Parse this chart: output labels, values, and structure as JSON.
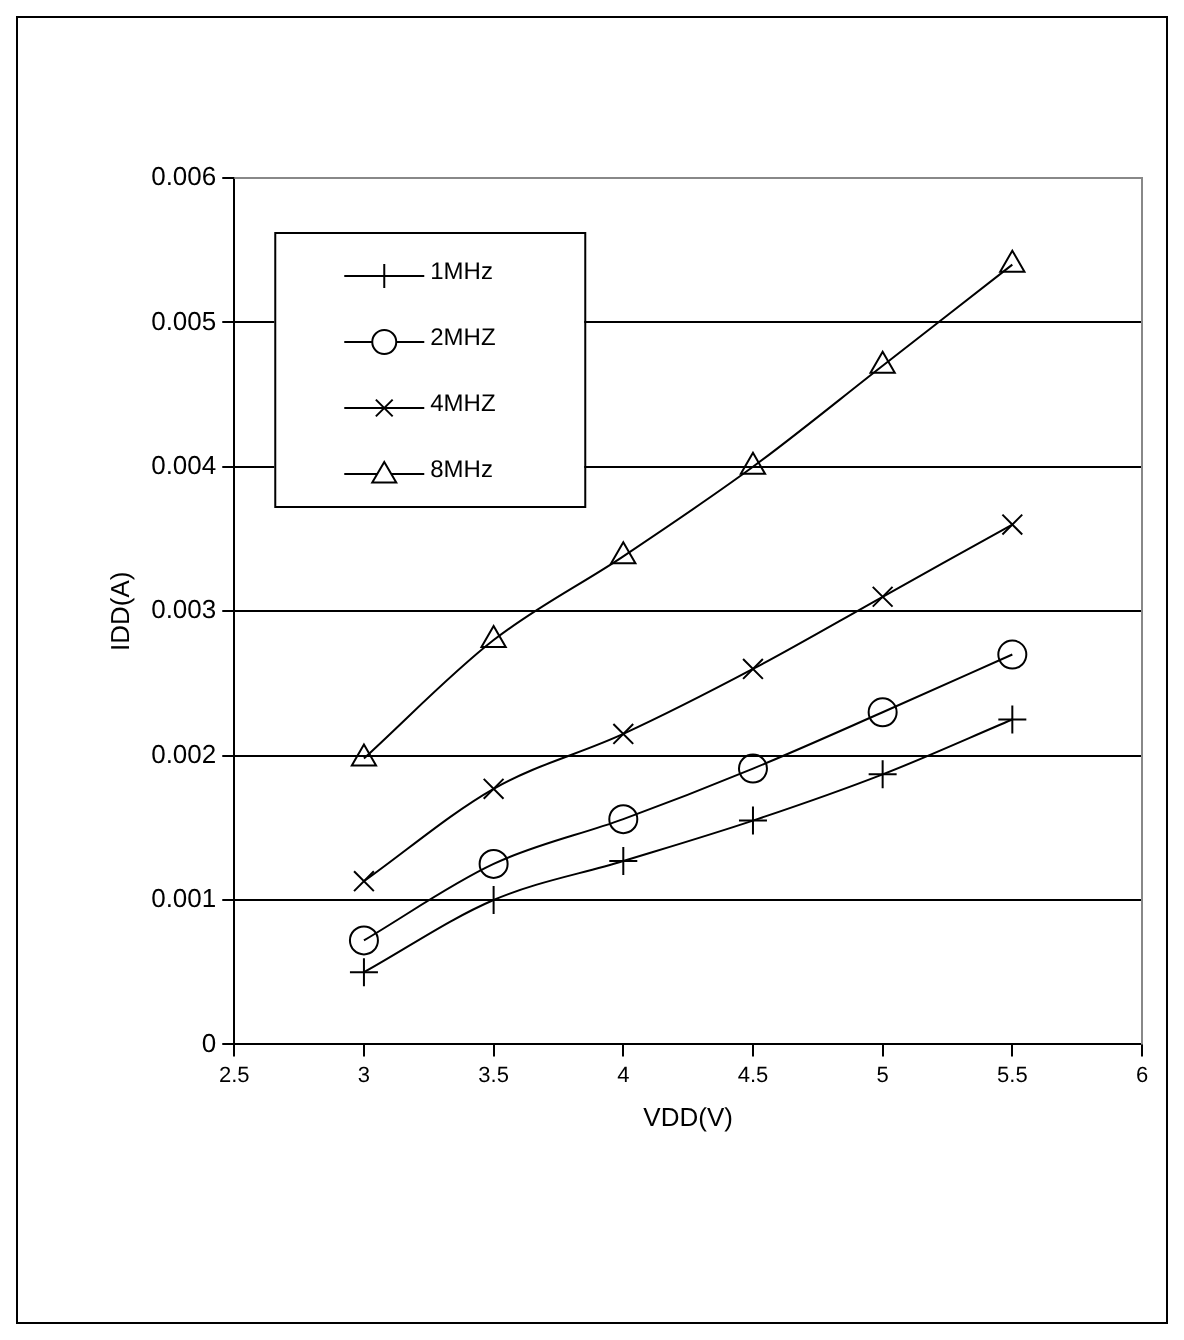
{
  "chart_data": {
    "type": "line",
    "xlabel": "VDD(V)",
    "ylabel": "IDD(A)",
    "x": [
      3,
      3.5,
      4,
      4.5,
      5,
      5.5
    ],
    "series": [
      {
        "name": "1MHz",
        "color": "#000000",
        "marker": "cross",
        "values": [
          0.0005,
          0.001,
          0.00127,
          0.00155,
          0.00187,
          0.00225
        ]
      },
      {
        "name": "2MHZ",
        "color": "#000000",
        "marker": "circle",
        "values": [
          0.00072,
          0.00125,
          0.00156,
          0.00191,
          0.0023,
          0.0027
        ]
      },
      {
        "name": "4MHZ",
        "color": "#000000",
        "marker": "x",
        "values": [
          0.00113,
          0.00177,
          0.00215,
          0.0026,
          0.0031,
          0.0036
        ]
      },
      {
        "name": "8MHz",
        "color": "#000000",
        "marker": "triangle",
        "values": [
          0.00198,
          0.0028,
          0.00338,
          0.004,
          0.0047,
          0.0054
        ]
      }
    ],
    "xlim": [
      2.5,
      6
    ],
    "xticks": [
      2.5,
      3,
      3.5,
      4,
      4.5,
      5,
      5.5,
      6
    ],
    "ylim": [
      0,
      0.006
    ],
    "yticks": [
      0,
      0.001,
      0.002,
      0.003,
      0.004,
      0.005,
      0.006
    ],
    "grid": "y",
    "legend": "top left",
    "line_style": "solid"
  }
}
